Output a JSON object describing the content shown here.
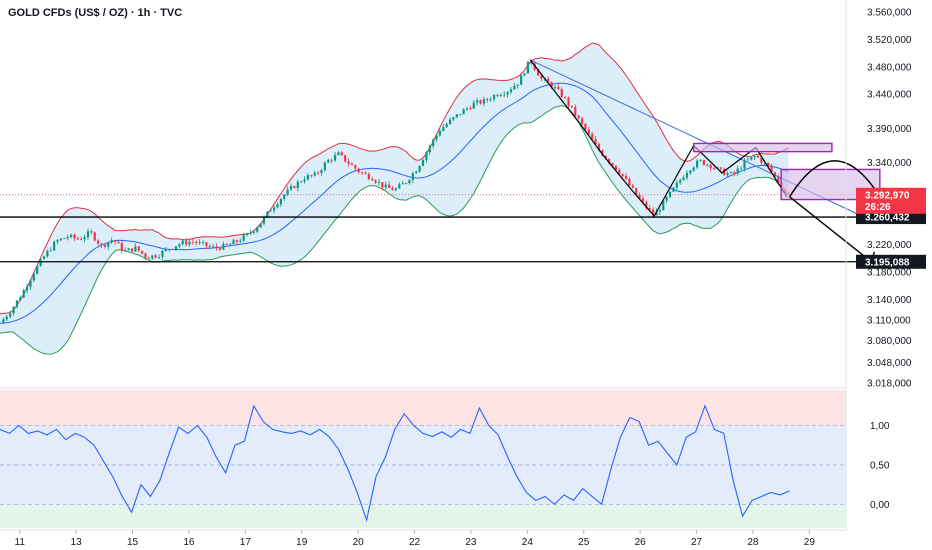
{
  "header": {
    "title": "GOLD CFDs (US$ / OZ) · 1h · TVC"
  },
  "colors": {
    "up": "#089981",
    "down": "#f23645",
    "band_upper": "#e0303a",
    "band_lower": "#2a9a5a",
    "band_mid": "#2962ff",
    "band_fill": "#bfe0f5",
    "oscillator": "#2962ff",
    "trendline": "#3b6fd8",
    "box_stroke": "#9c27b0",
    "box_fill": "#d7b8e8"
  },
  "chart_data": [
    {
      "type": "candlestick",
      "title": "GOLD CFDs (US$ / OZ) · 1h · TVC",
      "x_ticks": [
        "11",
        "13",
        "15",
        "16",
        "17",
        "19",
        "20",
        "22",
        "23",
        "24",
        "25",
        "26",
        "27",
        "28",
        "29"
      ],
      "x_tick_pos": [
        0.7,
        2.7,
        4.7,
        6.7,
        8.7,
        10.7,
        12.7,
        14.7,
        16.7,
        18.7,
        20.7,
        22.7,
        24.7,
        26.7,
        28.7
      ],
      "x_range": [
        0,
        30
      ],
      "y_ticks": [
        "3.560,000",
        "3.520,000",
        "3.480,000",
        "3.440,000",
        "3.390,000",
        "3.340,000",
        "3.260,000",
        "3.220,000",
        "3.180,000",
        "3.140,000",
        "3.110,000",
        "3.080,000",
        "3.048,000",
        "3.018,000"
      ],
      "y_tick_values": [
        3560,
        3520,
        3480,
        3440,
        3390,
        3340,
        3260,
        3220,
        3180,
        3140,
        3110,
        3080,
        3048,
        3018
      ],
      "y_range": [
        3018,
        3560
      ],
      "price_path": [
        [
          0,
          3105
        ],
        [
          0.4,
          3125
        ],
        [
          0.8,
          3150
        ],
        [
          1.2,
          3180
        ],
        [
          1.6,
          3205
        ],
        [
          2.0,
          3225
        ],
        [
          2.4,
          3232
        ],
        [
          2.8,
          3228
        ],
        [
          3.2,
          3238
        ],
        [
          3.6,
          3218
        ],
        [
          4.0,
          3228
        ],
        [
          4.4,
          3210
        ],
        [
          4.8,
          3215
        ],
        [
          5.2,
          3202
        ],
        [
          5.6,
          3205
        ],
        [
          6.0,
          3215
        ],
        [
          6.4,
          3222
        ],
        [
          6.8,
          3225
        ],
        [
          7.2,
          3220
        ],
        [
          7.6,
          3215
        ],
        [
          8.0,
          3218
        ],
        [
          8.4,
          3225
        ],
        [
          8.8,
          3235
        ],
        [
          9.2,
          3250
        ],
        [
          9.6,
          3272
        ],
        [
          10.0,
          3290
        ],
        [
          10.4,
          3305
        ],
        [
          10.8,
          3318
        ],
        [
          11.2,
          3322
        ],
        [
          11.6,
          3342
        ],
        [
          12.0,
          3352
        ],
        [
          12.4,
          3338
        ],
        [
          12.8,
          3325
        ],
        [
          13.2,
          3318
        ],
        [
          13.6,
          3305
        ],
        [
          14.0,
          3300
        ],
        [
          14.4,
          3312
        ],
        [
          14.8,
          3332
        ],
        [
          15.2,
          3362
        ],
        [
          15.6,
          3388
        ],
        [
          16.0,
          3402
        ],
        [
          16.4,
          3415
        ],
        [
          16.8,
          3426
        ],
        [
          17.2,
          3430
        ],
        [
          17.6,
          3440
        ],
        [
          18.0,
          3445
        ],
        [
          18.4,
          3458
        ],
        [
          18.8,
          3490
        ],
        [
          19.2,
          3462
        ],
        [
          19.6,
          3452
        ],
        [
          20.0,
          3435
        ],
        [
          20.4,
          3410
        ],
        [
          20.8,
          3385
        ],
        [
          21.2,
          3360
        ],
        [
          21.6,
          3342
        ],
        [
          22.0,
          3325
        ],
        [
          22.4,
          3302
        ],
        [
          22.8,
          3280
        ],
        [
          23.2,
          3262
        ],
        [
          23.6,
          3285
        ],
        [
          24.0,
          3308
        ],
        [
          24.4,
          3330
        ],
        [
          24.8,
          3342
        ],
        [
          25.2,
          3336
        ],
        [
          25.6,
          3326
        ],
        [
          26.0,
          3322
        ],
        [
          26.4,
          3340
        ],
        [
          26.8,
          3350
        ],
        [
          27.2,
          3335
        ],
        [
          27.6,
          3312
        ],
        [
          27.8,
          3298
        ],
        [
          28.0,
          3293
        ]
      ],
      "current_price": "3.292,970",
      "countdown": "26:26",
      "levels": [
        {
          "value": 3260.432,
          "label": "3.260,432"
        },
        {
          "value": 3195.088,
          "label": "3.195,088"
        }
      ]
    },
    {
      "type": "line",
      "y_ticks": [
        "1,00",
        "0,50",
        "0,00"
      ],
      "y_tick_values": [
        1.0,
        0.5,
        0.0
      ],
      "y_range": [
        -0.3,
        1.45
      ],
      "bands": [
        {
          "from": 1.0,
          "to": 1.45,
          "color": "#fde3e3"
        },
        {
          "from": 0.0,
          "to": 1.0,
          "color": "#e3ecfb"
        },
        {
          "from": -0.3,
          "to": 0.0,
          "color": "#e3f4ea"
        }
      ],
      "values": [
        0.95,
        0.9,
        1.0,
        0.9,
        0.93,
        0.88,
        0.95,
        0.82,
        0.9,
        0.85,
        0.75,
        0.55,
        0.35,
        0.1,
        -0.1,
        0.25,
        0.1,
        0.3,
        0.65,
        0.98,
        0.9,
        1.0,
        0.85,
        0.6,
        0.4,
        0.75,
        0.8,
        1.25,
        1.05,
        0.95,
        0.92,
        0.9,
        0.93,
        0.88,
        0.95,
        0.86,
        0.7,
        0.45,
        0.15,
        -0.2,
        0.35,
        0.6,
        0.95,
        1.15,
        1.0,
        0.9,
        0.86,
        0.92,
        0.85,
        0.95,
        0.9,
        1.22,
        1.0,
        0.88,
        0.6,
        0.35,
        0.15,
        0.05,
        0.1,
        0.0,
        0.12,
        0.05,
        0.2,
        0.1,
        0.0,
        0.45,
        0.85,
        1.1,
        1.05,
        0.75,
        0.8,
        0.65,
        0.5,
        0.85,
        0.92,
        1.25,
        0.95,
        0.9,
        0.3,
        -0.15,
        0.05,
        0.1,
        0.15,
        0.12,
        0.17
      ]
    }
  ]
}
